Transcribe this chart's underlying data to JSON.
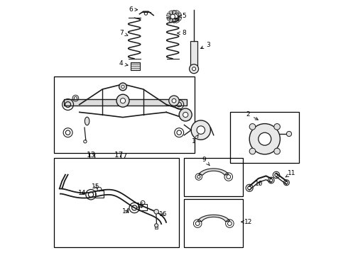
{
  "bg_color": "#ffffff",
  "border_color": "#000000",
  "line_color": "#1a1a1a",
  "text_color": "#000000",
  "figsize": [
    4.9,
    3.6
  ],
  "dpi": 100,
  "boxes": {
    "subframe": [
      0.03,
      0.3,
      0.58,
      0.6
    ],
    "stab_bar": [
      0.03,
      0.62,
      0.52,
      0.97
    ],
    "knuckle": [
      0.72,
      0.44,
      0.99,
      0.64
    ],
    "lower_arm9": [
      0.54,
      0.62,
      0.77,
      0.77
    ],
    "lower_arm12": [
      0.54,
      0.78,
      0.77,
      0.97
    ]
  }
}
